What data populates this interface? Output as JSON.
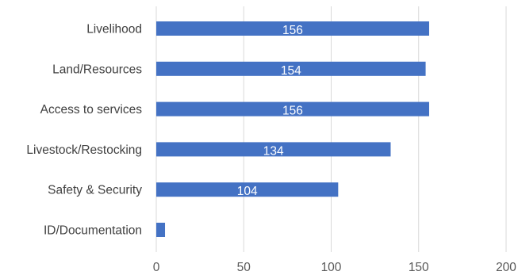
{
  "chart_data": {
    "type": "bar",
    "orientation": "horizontal",
    "categories": [
      "Livelihood",
      "Land/Resources",
      "Access to services",
      "Livestock/Restocking",
      "Safety & Security",
      "ID/Documentation"
    ],
    "values": [
      156,
      154,
      156,
      134,
      104,
      5
    ],
    "data_labels": [
      "156",
      "154",
      "156",
      "134",
      "104",
      ""
    ],
    "x_ticks": [
      "0",
      "50",
      "100",
      "150",
      "200"
    ],
    "xlim": [
      0,
      200
    ],
    "grid": "vertical",
    "legend": "none",
    "bar_color": "#4472c4",
    "gridline_color": "#d9d9d9",
    "category_label_color": "#404040",
    "tick_label_color": "#595959",
    "data_label_color": "#ffffff"
  }
}
